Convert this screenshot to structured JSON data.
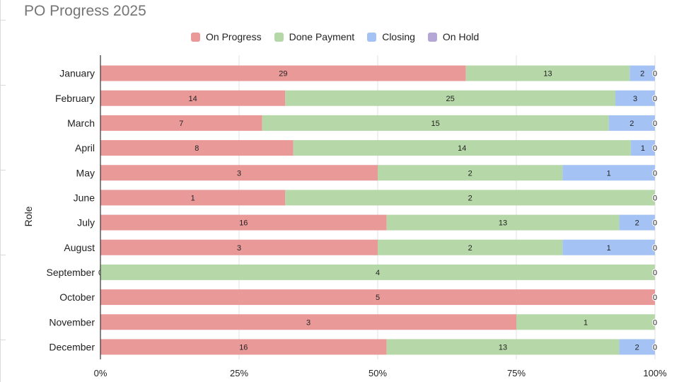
{
  "chart_data": {
    "type": "bar",
    "orientation": "horizontal",
    "stacking": "percent",
    "title": "PO Progress 2025",
    "xlabel": "",
    "ylabel": "Role",
    "categories": [
      "January",
      "February",
      "March",
      "April",
      "May",
      "June",
      "July",
      "August",
      "September",
      "October",
      "November",
      "December"
    ],
    "series": [
      {
        "name": "On Progress",
        "color": "#ea9999",
        "values": [
          29,
          14,
          7,
          8,
          3,
          1,
          16,
          3,
          0,
          5,
          3,
          16
        ]
      },
      {
        "name": "Done Payment",
        "color": "#b6d7a8",
        "values": [
          13,
          25,
          15,
          14,
          2,
          2,
          13,
          2,
          4,
          0,
          1,
          13
        ]
      },
      {
        "name": "Closing",
        "color": "#a4c2f4",
        "values": [
          2,
          3,
          2,
          1,
          1,
          0,
          2,
          1,
          0,
          0,
          0,
          2
        ]
      },
      {
        "name": "On Hold",
        "color": "#b4a7d6",
        "values": [
          0,
          0,
          0,
          0,
          0,
          0,
          0,
          0,
          0,
          0,
          0,
          0
        ]
      }
    ],
    "xticks": [
      "0%",
      "25%",
      "50%",
      "75%",
      "100%"
    ],
    "xlim": [
      0,
      100
    ],
    "grid": true,
    "legend_position": "top"
  }
}
